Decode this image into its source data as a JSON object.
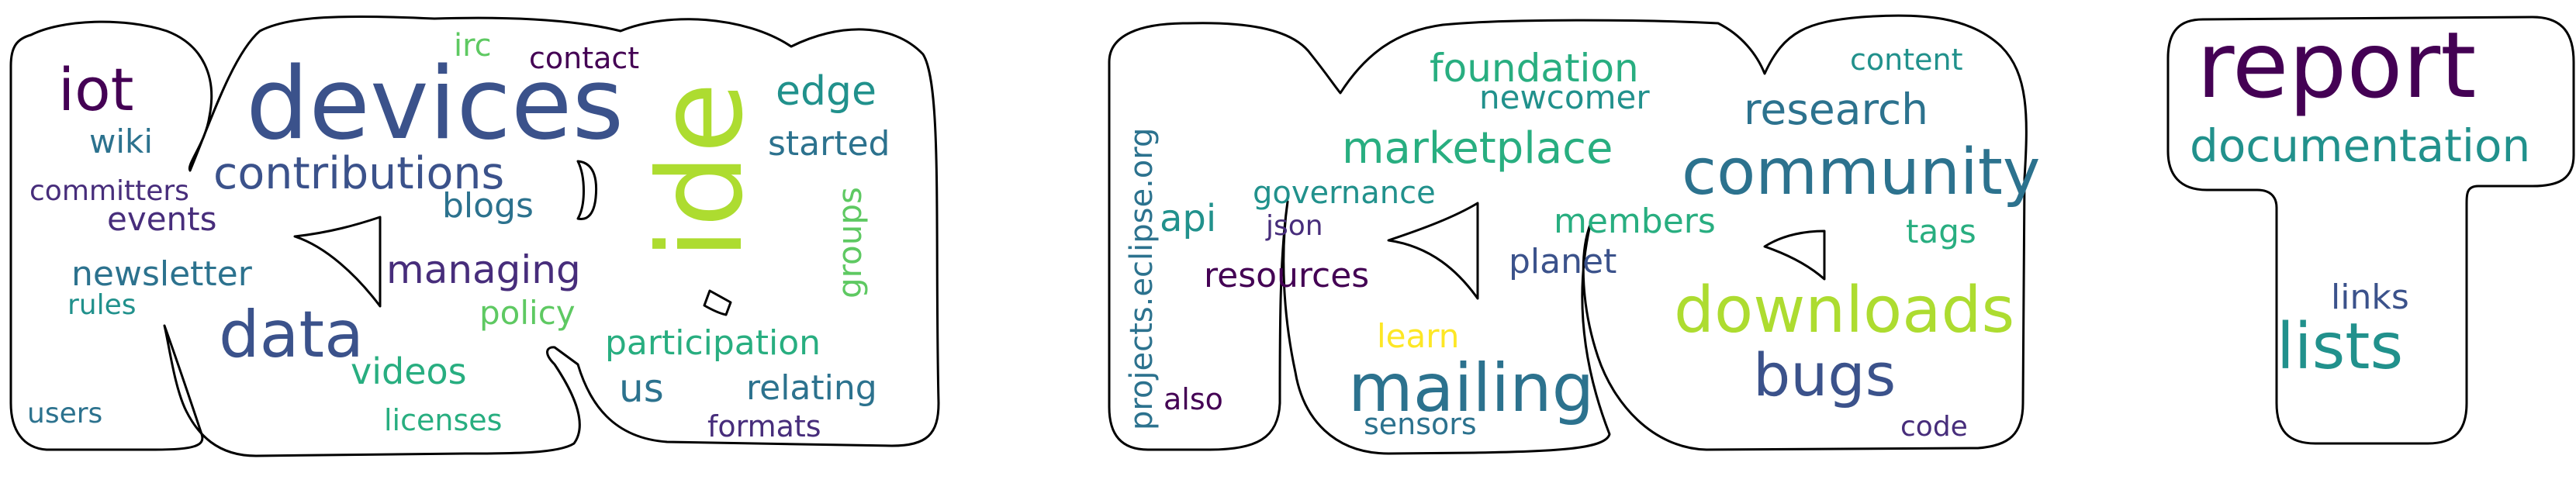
{
  "palette": {
    "purple": "#440154",
    "indigo": "#472d7b",
    "blue": "#3b528b",
    "steel": "#2c728e",
    "teal": "#21918c",
    "sea": "#28ae80",
    "green": "#5ec962",
    "lime": "#addc30",
    "yellow": "#fde725"
  },
  "clouds": [
    {
      "name": "letter-k",
      "words": [
        {
          "text": "devices",
          "color": "blue"
        },
        {
          "text": "ide",
          "color": "lime"
        },
        {
          "text": "iot",
          "color": "purple"
        },
        {
          "text": "contributions",
          "color": "blue"
        },
        {
          "text": "data",
          "color": "blue"
        },
        {
          "text": "edge",
          "color": "teal"
        },
        {
          "text": "started",
          "color": "steel"
        },
        {
          "text": "irc",
          "color": "green"
        },
        {
          "text": "contact",
          "color": "purple"
        },
        {
          "text": "wiki",
          "color": "steel"
        },
        {
          "text": "committers",
          "color": "indigo"
        },
        {
          "text": "events",
          "color": "indigo"
        },
        {
          "text": "blogs",
          "color": "steel"
        },
        {
          "text": "groups",
          "color": "green"
        },
        {
          "text": "managing",
          "color": "indigo"
        },
        {
          "text": "newsletter",
          "color": "steel"
        },
        {
          "text": "rules",
          "color": "teal"
        },
        {
          "text": "policy",
          "color": "green"
        },
        {
          "text": "participation",
          "color": "sea"
        },
        {
          "text": "videos",
          "color": "sea"
        },
        {
          "text": "us",
          "color": "steel"
        },
        {
          "text": "relating",
          "color": "steel"
        },
        {
          "text": "users",
          "color": "steel"
        },
        {
          "text": "licenses",
          "color": "sea"
        },
        {
          "text": "formats",
          "color": "indigo"
        }
      ]
    },
    {
      "name": "letter-m",
      "words": [
        {
          "text": "projects.eclipse.org",
          "color": "steel"
        },
        {
          "text": "foundation",
          "color": "sea"
        },
        {
          "text": "newcomer",
          "color": "teal"
        },
        {
          "text": "content",
          "color": "teal"
        },
        {
          "text": "research",
          "color": "steel"
        },
        {
          "text": "marketplace",
          "color": "sea"
        },
        {
          "text": "community",
          "color": "steel"
        },
        {
          "text": "api",
          "color": "teal"
        },
        {
          "text": "governance",
          "color": "teal"
        },
        {
          "text": "json",
          "color": "indigo"
        },
        {
          "text": "members",
          "color": "sea"
        },
        {
          "text": "tags",
          "color": "sea"
        },
        {
          "text": "planet",
          "color": "blue"
        },
        {
          "text": "resources",
          "color": "purple"
        },
        {
          "text": "downloads",
          "color": "lime"
        },
        {
          "text": "learn",
          "color": "yellow"
        },
        {
          "text": "mailing",
          "color": "steel"
        },
        {
          "text": "bugs",
          "color": "blue"
        },
        {
          "text": "also",
          "color": "purple"
        },
        {
          "text": "sensors",
          "color": "steel"
        },
        {
          "text": "code",
          "color": "indigo"
        }
      ]
    },
    {
      "name": "letter-t",
      "words": [
        {
          "text": "report",
          "color": "purple"
        },
        {
          "text": "documentation",
          "color": "teal"
        },
        {
          "text": "links",
          "color": "blue"
        },
        {
          "text": "lists",
          "color": "teal"
        }
      ]
    }
  ]
}
